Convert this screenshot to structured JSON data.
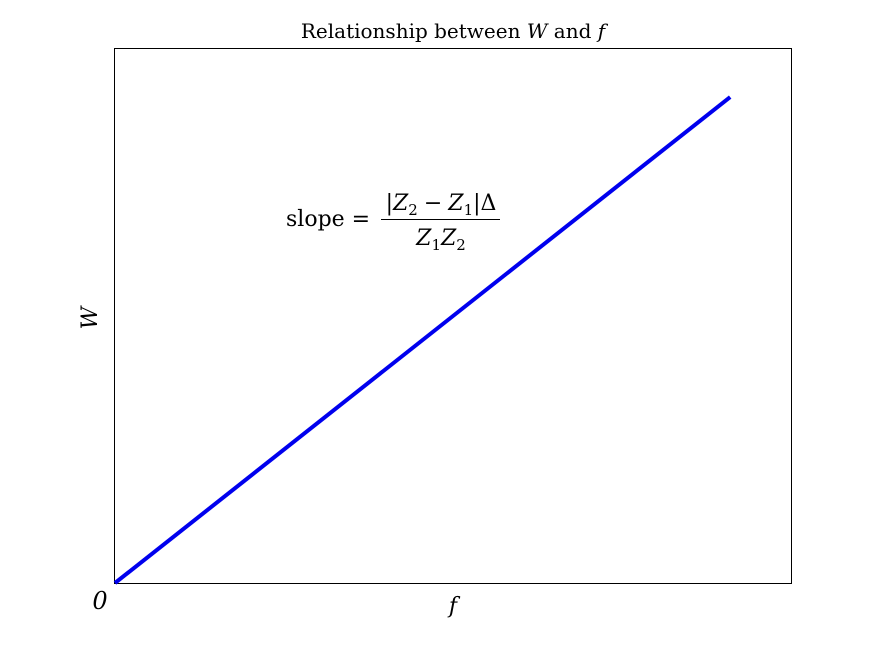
{
  "chart_data": {
    "type": "line",
    "title": {
      "prefix": "Relationship between ",
      "var1": "W",
      "middle": " and ",
      "var2": "f"
    },
    "xlabel": "f",
    "ylabel": "W",
    "origin_label": "0",
    "x": [
      0,
      0.91
    ],
    "y": [
      0,
      0.91
    ],
    "xlim": [
      0,
      1
    ],
    "ylim": [
      0,
      1
    ],
    "series": [
      {
        "color": "#0000ee",
        "x": [
          0,
          0.91
        ],
        "y": [
          0,
          0.91
        ]
      }
    ],
    "annotation": {
      "lhs": "slope =",
      "numerator": {
        "bar_left": "|",
        "z2": "Z",
        "z2_sub": "2",
        "minus": "−",
        "z1": "Z",
        "z1_sub": "1",
        "bar_right": "|",
        "delta": "Δ"
      },
      "denominator": {
        "z1": "Z",
        "z1_sub": "1",
        "z2": "Z",
        "z2_sub": "2"
      }
    },
    "grid": false,
    "legend": "none"
  }
}
